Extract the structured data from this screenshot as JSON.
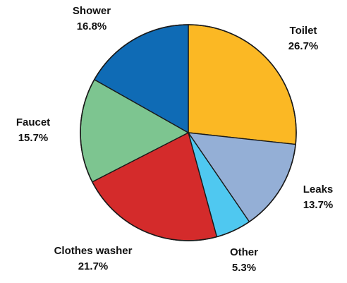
{
  "chart_data": {
    "type": "pie",
    "title": "",
    "slices": [
      {
        "label": "Toilet",
        "value": 26.7,
        "value_label": "26.7%",
        "color": "#FBB824"
      },
      {
        "label": "Leaks",
        "value": 13.7,
        "value_label": "13.7%",
        "color": "#94AFD6"
      },
      {
        "label": "Other",
        "value": 5.3,
        "value_label": "5.3%",
        "color": "#4FC8F0"
      },
      {
        "label": "Clothes washer",
        "value": 21.7,
        "value_label": "21.7%",
        "color": "#D42B2B"
      },
      {
        "label": "Faucet",
        "value": 15.7,
        "value_label": "15.7%",
        "color": "#7DC590"
      },
      {
        "label": "Shower",
        "value": 16.8,
        "value_label": "16.8%",
        "color": "#0F6BB5"
      }
    ],
    "start_angle": "12 o'clock",
    "direction": "clockwise",
    "legend": "none (labels placed next to slices)"
  }
}
